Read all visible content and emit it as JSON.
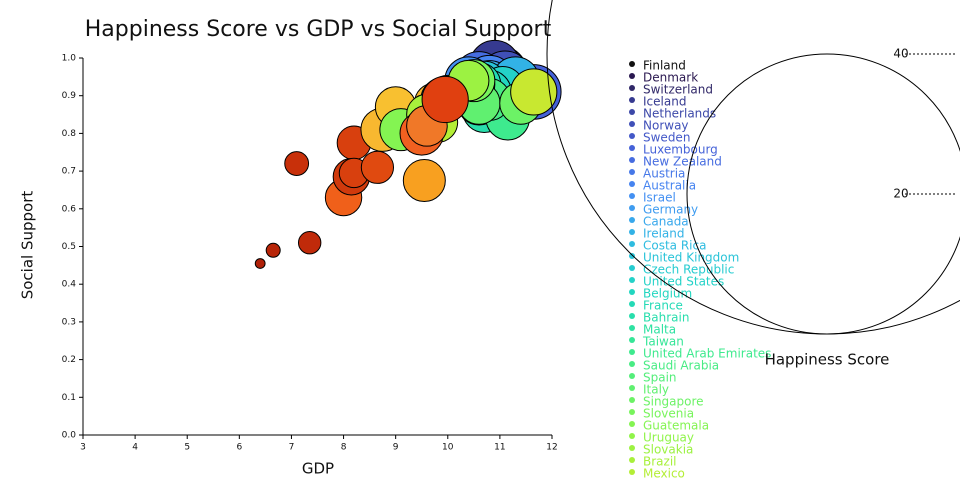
{
  "chart_data": {
    "type": "bubble",
    "title": "Happiness Score vs GDP vs Social Support",
    "x_label": "GDP",
    "y_label": "Social Support",
    "xlim": [
      3,
      12
    ],
    "xticks": [
      3,
      4,
      5,
      6,
      7,
      8,
      9,
      10,
      11,
      12
    ],
    "ylim": [
      0,
      1
    ],
    "yticks": [
      {
        "value": 0,
        "label": "0.0"
      },
      0.1,
      0.2,
      0.3,
      0.4,
      0.5,
      0.6,
      0.7,
      0.8,
      0.9,
      {
        "value": 1,
        "label": "1.0"
      }
    ],
    "size_title": "Happiness Score",
    "size_ticks": [
      20,
      40
    ],
    "series": [
      {
        "color": "#b02008",
        "x": [
          6.4
        ],
        "values": [
          0.455
        ],
        "sizes": [
          0.7
        ]
      },
      {
        "color": "#b82508",
        "x": [
          6.65
        ],
        "values": [
          0.49
        ],
        "sizes": [
          1.0
        ]
      },
      {
        "color": "#c02a0a",
        "x": [
          7.35
        ],
        "values": [
          0.51
        ],
        "sizes": [
          1.6
        ]
      },
      {
        "color": "#c8300a",
        "x": [
          7.1
        ],
        "values": [
          0.72
        ],
        "sizes": [
          1.7
        ]
      },
      {
        "color": "#f0601a",
        "x": [
          8.0
        ],
        "values": [
          0.63
        ],
        "sizes": [
          2.6
        ]
      },
      {
        "color": "#d8400e",
        "x": [
          8.2
        ],
        "values": [
          0.775
        ],
        "sizes": [
          2.4
        ]
      },
      {
        "color": "#d03a0c",
        "x": [
          8.15
        ],
        "values": [
          0.685
        ],
        "sizes": [
          2.6
        ]
      },
      {
        "color": "#d8400e",
        "x": [
          8.2
        ],
        "values": [
          0.695
        ],
        "sizes": [
          2.1
        ]
      },
      {
        "color": "#e04a10",
        "x": [
          8.65
        ],
        "values": [
          0.71
        ],
        "sizes": [
          2.3
        ]
      },
      {
        "color": "#f8a020",
        "x": [
          9.55
        ],
        "values": [
          0.675
        ],
        "sizes": [
          3.0
        ]
      },
      {
        "color": "#f8b830",
        "x": [
          8.75
        ],
        "values": [
          0.81
        ],
        "sizes": [
          3.1
        ]
      },
      {
        "color": "#f8c030",
        "x": [
          9.0
        ],
        "values": [
          0.87
        ],
        "sizes": [
          2.9
        ]
      },
      {
        "color": "#f8b830",
        "x": [
          9.75
        ],
        "values": [
          0.88
        ],
        "sizes": [
          2.9
        ]
      },
      {
        "name": "Finland",
        "color": "#111111",
        "x": [
          10.9
        ],
        "values": [
          0.95
        ],
        "sizes": [
          4.0
        ]
      },
      {
        "name": "Denmark",
        "color": "#2a1850",
        "x": [
          11.0
        ],
        "values": [
          0.96
        ],
        "sizes": [
          3.9
        ]
      },
      {
        "name": "Switzerland",
        "color": "#302868",
        "x": [
          11.1
        ],
        "values": [
          0.94
        ],
        "sizes": [
          3.9
        ]
      },
      {
        "name": "Iceland",
        "color": "#363a90",
        "x": [
          10.9
        ],
        "values": [
          0.98
        ],
        "sizes": [
          3.6
        ]
      },
      {
        "name": "Netherlands",
        "color": "#3c48a8",
        "x": [
          10.95
        ],
        "values": [
          0.93
        ],
        "sizes": [
          3.7
        ]
      },
      {
        "name": "Norway",
        "color": "#4050b8",
        "x": [
          11.1
        ],
        "values": [
          0.95
        ],
        "sizes": [
          3.7
        ]
      },
      {
        "name": "Sweden",
        "color": "#4358c8",
        "x": [
          10.9
        ],
        "values": [
          0.93
        ],
        "sizes": [
          3.7
        ]
      },
      {
        "name": "Luxembourg",
        "color": "#4562d8",
        "x": [
          11.65
        ],
        "values": [
          0.91
        ],
        "sizes": [
          3.9
        ]
      },
      {
        "name": "New Zealand",
        "color": "#466ce0",
        "x": [
          10.6
        ],
        "values": [
          0.95
        ],
        "sizes": [
          3.6
        ]
      },
      {
        "name": "Austria",
        "color": "#4678e8",
        "x": [
          10.9
        ],
        "values": [
          0.92
        ],
        "sizes": [
          3.6
        ]
      },
      {
        "name": "Australia",
        "color": "#4684f0",
        "x": [
          10.8
        ],
        "values": [
          0.94
        ],
        "sizes": [
          3.6
        ]
      },
      {
        "name": "Israel",
        "color": "#4490f2",
        "x": [
          10.4
        ],
        "values": [
          0.94
        ],
        "sizes": [
          3.4
        ]
      },
      {
        "name": "Germany",
        "color": "#3f9cf0",
        "x": [
          10.9
        ],
        "values": [
          0.9
        ],
        "sizes": [
          3.4
        ]
      },
      {
        "name": "Canada",
        "color": "#38a8ec",
        "x": [
          10.8
        ],
        "values": [
          0.93
        ],
        "sizes": [
          3.4
        ]
      },
      {
        "name": "Ireland",
        "color": "#32b2e6",
        "x": [
          11.3
        ],
        "values": [
          0.94
        ],
        "sizes": [
          3.4
        ]
      },
      {
        "name": "Costa Rica",
        "color": "#2ebce0",
        "x": [
          9.9
        ],
        "values": [
          0.89
        ],
        "sizes": [
          3.1
        ]
      },
      {
        "name": "United Kingdom",
        "color": "#2ac4d8",
        "x": [
          10.7
        ],
        "values": [
          0.93
        ],
        "sizes": [
          3.3
        ]
      },
      {
        "name": "Czech Republic",
        "color": "#26ccd0",
        "x": [
          10.4
        ],
        "values": [
          0.92
        ],
        "sizes": [
          3.1
        ]
      },
      {
        "name": "United States",
        "color": "#24d2c8",
        "x": [
          11.05
        ],
        "values": [
          0.92
        ],
        "sizes": [
          3.1
        ]
      },
      {
        "name": "Belgium",
        "color": "#22d6c0",
        "x": [
          10.8
        ],
        "values": [
          0.91
        ],
        "sizes": [
          3.1
        ]
      },
      {
        "name": "France",
        "color": "#24dab6",
        "x": [
          10.6
        ],
        "values": [
          0.93
        ],
        "sizes": [
          3.1
        ]
      },
      {
        "name": "Bahrain",
        "color": "#28deac",
        "x": [
          10.7
        ],
        "values": [
          0.86
        ],
        "sizes": [
          3.1
        ]
      },
      {
        "name": "Malta",
        "color": "#2ee2a2",
        "x": [
          10.5
        ],
        "values": [
          0.93
        ],
        "sizes": [
          3.1
        ]
      },
      {
        "name": "Taiwan",
        "color": "#36e698",
        "x": [
          10.6
        ],
        "values": [
          0.88
        ],
        "sizes": [
          3.1
        ]
      },
      {
        "name": "United Arab Emirates",
        "color": "#3eea8e",
        "x": [
          11.15
        ],
        "values": [
          0.84
        ],
        "sizes": [
          3.1
        ]
      },
      {
        "name": "Saudi Arabia",
        "color": "#48ec84",
        "x": [
          10.8
        ],
        "values": [
          0.89
        ],
        "sizes": [
          3.0
        ]
      },
      {
        "name": "Spain",
        "color": "#54ee7a",
        "x": [
          10.5
        ],
        "values": [
          0.93
        ],
        "sizes": [
          3.0
        ]
      },
      {
        "name": "Italy",
        "color": "#60f070",
        "x": [
          10.6
        ],
        "values": [
          0.88
        ],
        "sizes": [
          3.0
        ]
      },
      {
        "name": "Singapore",
        "color": "#6cf266",
        "x": [
          11.4
        ],
        "values": [
          0.88
        ],
        "sizes": [
          3.0
        ]
      },
      {
        "name": "Slovenia",
        "color": "#78f45c",
        "x": [
          10.5
        ],
        "values": [
          0.94
        ],
        "sizes": [
          3.0
        ]
      },
      {
        "name": "Guatemala",
        "color": "#84f452",
        "x": [
          9.1
        ],
        "values": [
          0.81
        ],
        "sizes": [
          3.0
        ]
      },
      {
        "name": "Uruguay",
        "color": "#90f44a",
        "x": [
          10.0
        ],
        "values": [
          0.9
        ],
        "sizes": [
          2.9
        ]
      },
      {
        "name": "Slovakia",
        "color": "#9cf242",
        "x": [
          10.4
        ],
        "values": [
          0.94
        ],
        "sizes": [
          2.9
        ]
      },
      {
        "name": "Brazil",
        "color": "#a8f03c",
        "x": [
          9.6
        ],
        "values": [
          0.85
        ],
        "sizes": [
          2.9
        ]
      },
      {
        "name": "Mexico",
        "color": "#b4ee36",
        "x": [
          9.8
        ],
        "values": [
          0.83
        ],
        "sizes": [
          2.9
        ]
      },
      {
        "color": "#f06020",
        "x": [
          9.5
        ],
        "values": [
          0.8
        ],
        "sizes": [
          3.1
        ]
      },
      {
        "color": "#f07828",
        "x": [
          9.6
        ],
        "values": [
          0.82
        ],
        "sizes": [
          2.9
        ]
      },
      {
        "color": "#e04010",
        "x": [
          9.95
        ],
        "values": [
          0.89
        ],
        "sizes": [
          3.3
        ]
      },
      {
        "color": "#c8e830",
        "x": [
          11.65
        ],
        "values": [
          0.91
        ],
        "sizes": [
          3.3
        ]
      }
    ]
  }
}
